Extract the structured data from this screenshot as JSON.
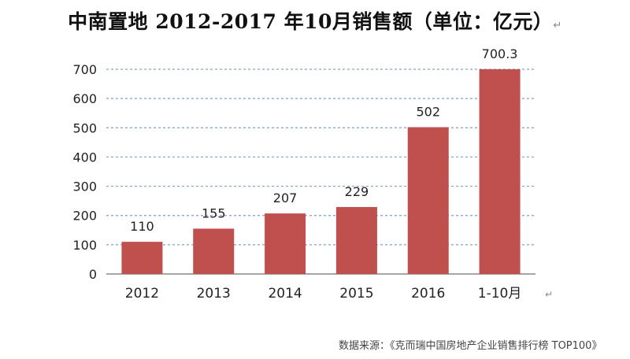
{
  "chart_data": {
    "type": "bar",
    "title": "中南置地 2012-2017 年10月销售额（单位：亿元）",
    "categories": [
      "2012",
      "2013",
      "2014",
      "2015",
      "2016",
      "1-10月"
    ],
    "values": [
      110,
      155,
      207,
      229,
      502,
      700.3
    ],
    "value_labels": [
      "110",
      "155",
      "207",
      "229",
      "502",
      "700.3"
    ],
    "yticks": [
      "0",
      "100",
      "200",
      "300",
      "400",
      "500",
      "600",
      "700"
    ],
    "ylim": [
      0,
      700
    ],
    "grid": true,
    "bar_color": "#c0504d",
    "grid_color": "#7fa3c9"
  },
  "paragraph_mark": "↵",
  "source_note": "数据来源：《克而瑞中国房地产企业销售排行榜 TOP100》"
}
